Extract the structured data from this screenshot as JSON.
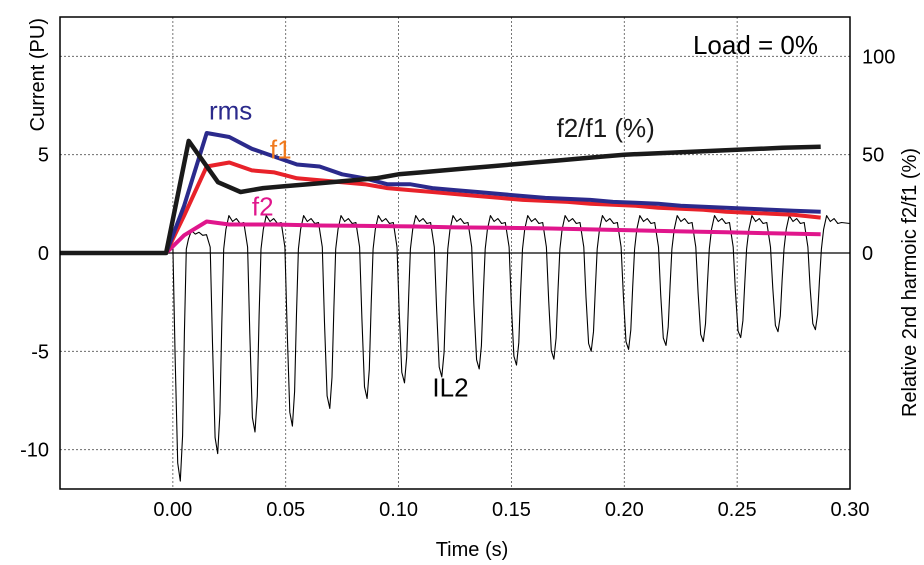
{
  "chart_data": {
    "type": "line",
    "xlabel": "Time (s)",
    "ylabel": "Current (PU)",
    "y2label": "Relative 2nd harmoic f2/f1 (%)",
    "xlim": [
      -0.05,
      0.3
    ],
    "ylim": [
      -12,
      12
    ],
    "y2lim": [
      -120,
      120
    ],
    "grid": true,
    "x_ticks": [
      "0.00",
      "0.05",
      "0.10",
      "0.15",
      "0.20",
      "0.25",
      "0.30"
    ],
    "y_ticks": [
      "-10",
      "-5",
      "0",
      "5"
    ],
    "y2_ticks": [
      "0",
      "50",
      "100"
    ],
    "load_label": "Load = 0%",
    "annotations": [
      {
        "text": "rms",
        "series": "rms",
        "x": 0.016,
        "y": 6.8
      },
      {
        "text": "f1",
        "series": "f1",
        "x": 0.043,
        "y": 4.8
      },
      {
        "text": "f2",
        "series": "f2",
        "x": 0.035,
        "y": 1.9
      },
      {
        "text": "f2/f1 (%)",
        "series": "f2f1",
        "x": 0.17,
        "y": 5.9
      },
      {
        "text": "IL2",
        "series": "il2",
        "x": 0.115,
        "y": -7.3
      }
    ],
    "colors": {
      "rms": "#2b2a8c",
      "f1": "#e8222a",
      "f1_label": "#f07a1e",
      "f2": "#e0168c",
      "f2f1": "#1a1a1a",
      "il2": "#000000",
      "zero": "#000000",
      "grid": "#555555"
    },
    "series": [
      {
        "key": "rms",
        "axis": "left",
        "x": [
          -0.05,
          -0.003,
          0.005,
          0.015,
          0.025,
          0.035,
          0.045,
          0.055,
          0.065,
          0.075,
          0.085,
          0.095,
          0.105,
          0.115,
          0.125,
          0.135,
          0.145,
          0.155,
          0.165,
          0.175,
          0.185,
          0.195,
          0.205,
          0.215,
          0.225,
          0.235,
          0.245,
          0.255,
          0.265,
          0.275,
          0.287
        ],
        "values": [
          0,
          0,
          2.4,
          6.1,
          5.9,
          5.3,
          4.9,
          4.5,
          4.4,
          4.0,
          3.8,
          3.5,
          3.5,
          3.3,
          3.2,
          3.1,
          3.0,
          2.9,
          2.8,
          2.75,
          2.7,
          2.6,
          2.55,
          2.5,
          2.4,
          2.35,
          2.3,
          2.25,
          2.2,
          2.15,
          2.1
        ]
      },
      {
        "key": "f1",
        "axis": "left",
        "x": [
          -0.05,
          -0.003,
          0.005,
          0.015,
          0.025,
          0.035,
          0.045,
          0.055,
          0.065,
          0.075,
          0.085,
          0.095,
          0.105,
          0.115,
          0.125,
          0.135,
          0.145,
          0.155,
          0.165,
          0.175,
          0.185,
          0.195,
          0.205,
          0.215,
          0.225,
          0.235,
          0.245,
          0.255,
          0.265,
          0.275,
          0.287
        ],
        "values": [
          0,
          0,
          1.9,
          4.4,
          4.6,
          4.2,
          4.1,
          3.8,
          3.7,
          3.6,
          3.5,
          3.3,
          3.2,
          3.1,
          3.0,
          2.9,
          2.8,
          2.7,
          2.65,
          2.6,
          2.5,
          2.45,
          2.4,
          2.3,
          2.25,
          2.2,
          2.1,
          2.05,
          2.0,
          1.95,
          1.8
        ]
      },
      {
        "key": "f2",
        "axis": "left",
        "x": [
          -0.05,
          -0.003,
          0.005,
          0.015,
          0.025,
          0.045,
          0.065,
          0.085,
          0.105,
          0.125,
          0.145,
          0.165,
          0.185,
          0.205,
          0.225,
          0.245,
          0.265,
          0.287
        ],
        "values": [
          0,
          0,
          0.9,
          1.6,
          1.45,
          1.45,
          1.4,
          1.38,
          1.35,
          1.3,
          1.28,
          1.25,
          1.2,
          1.15,
          1.1,
          1.05,
          1.0,
          0.95
        ]
      },
      {
        "key": "f2f1",
        "axis": "right",
        "x": [
          -0.05,
          -0.003,
          0.007,
          0.02,
          0.03,
          0.04,
          0.05,
          0.06,
          0.07,
          0.08,
          0.09,
          0.1,
          0.11,
          0.12,
          0.13,
          0.14,
          0.15,
          0.16,
          0.17,
          0.18,
          0.19,
          0.2,
          0.21,
          0.22,
          0.23,
          0.24,
          0.25,
          0.26,
          0.27,
          0.287
        ],
        "values": [
          0,
          0,
          57,
          36,
          31,
          33,
          34,
          35,
          36,
          37,
          38,
          40,
          41,
          42,
          43,
          44,
          45,
          46,
          47,
          48,
          49,
          50,
          50.5,
          51,
          51.5,
          52,
          52.5,
          53,
          53.5,
          54
        ]
      },
      {
        "key": "il2",
        "axis": "left",
        "type": "inrush",
        "start": 0.0,
        "end": 0.3,
        "period": 0.01655,
        "positive_level": 1.8,
        "valley_depths": [
          -11.6,
          -10.2,
          -9.1,
          -8.8,
          -7.9,
          -7.4,
          -6.6,
          -6.3,
          -5.9,
          -5.7,
          -5.4,
          -5.0,
          -4.9,
          -4.7,
          -4.5,
          -4.3,
          -4.0,
          -3.9
        ]
      }
    ]
  }
}
